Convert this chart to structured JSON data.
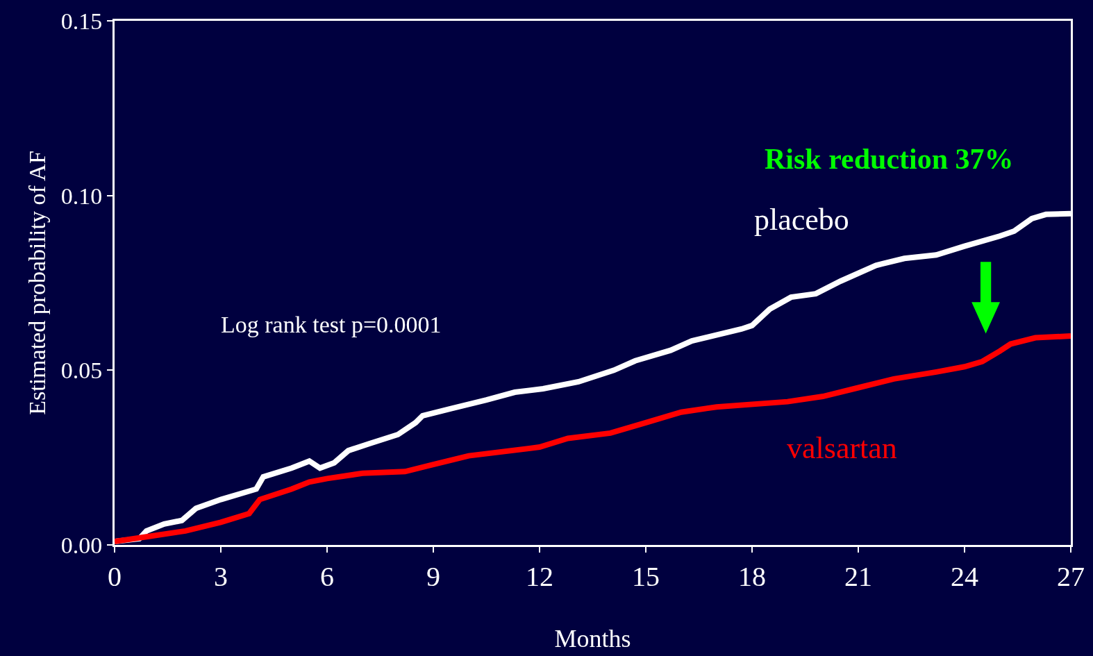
{
  "chart_data": {
    "type": "line",
    "xlabel": "Months",
    "ylabel": "Estimated probability of AF",
    "xlim": [
      0,
      27
    ],
    "xticks": [
      0,
      3,
      6,
      9,
      12,
      15,
      18,
      21,
      24,
      27
    ],
    "ylim": [
      0,
      0.15
    ],
    "yticks": [
      {
        "value": 0,
        "label": "0.00"
      },
      {
        "value": 0.05,
        "label": "0.05"
      },
      {
        "value": 0.1,
        "label": "0.10"
      },
      {
        "value": 0.15,
        "label": "0.15"
      }
    ],
    "legend": false,
    "grid": false,
    "marker": "none",
    "line_style": "solid",
    "annotations": [
      "Log rank test p=0.0001",
      "Risk reduction 37%"
    ],
    "series": [
      {
        "name": "placebo",
        "color": "#ffffff",
        "x": [
          0,
          0.7,
          0.9,
          1.4,
          1.9,
          2.3,
          3,
          4,
          4.2,
          5,
          5.5,
          5.8,
          6.2,
          6.6,
          7.2,
          8,
          8.5,
          8.7,
          9.5,
          10.5,
          11.3,
          12.1,
          13.1,
          14.1,
          14.7,
          15.7,
          16.3,
          17.7,
          18,
          18.5,
          19.1,
          19.8,
          20.5,
          21.5,
          22.3,
          23.2,
          24,
          25,
          25.4,
          25.9,
          26.3,
          27
        ],
        "values": [
          0.001,
          0.0018,
          0.004,
          0.006,
          0.007,
          0.0105,
          0.013,
          0.016,
          0.0195,
          0.022,
          0.024,
          0.022,
          0.0235,
          0.027,
          0.029,
          0.0316,
          0.035,
          0.037,
          0.039,
          0.0415,
          0.0437,
          0.0447,
          0.0467,
          0.05,
          0.0527,
          0.0557,
          0.0584,
          0.0618,
          0.0628,
          0.0675,
          0.0709,
          0.0719,
          0.0755,
          0.08,
          0.082,
          0.083,
          0.0855,
          0.0884,
          0.0898,
          0.0934,
          0.0946,
          0.0948
        ]
      },
      {
        "name": "valsartan",
        "color": "#ff0000",
        "x": [
          0,
          1,
          2,
          3,
          3.8,
          4.1,
          5,
          5.5,
          6,
          7,
          8.2,
          9,
          10,
          12,
          12.8,
          14,
          15,
          16,
          17,
          19,
          20,
          21,
          22,
          23.2,
          24,
          24.5,
          25,
          25.3,
          26,
          27
        ],
        "values": [
          0.001,
          0.0025,
          0.004,
          0.0065,
          0.009,
          0.013,
          0.016,
          0.018,
          0.019,
          0.0205,
          0.021,
          0.023,
          0.0255,
          0.028,
          0.0305,
          0.032,
          0.035,
          0.038,
          0.0395,
          0.041,
          0.0425,
          0.045,
          0.0475,
          0.0495,
          0.051,
          0.0525,
          0.0555,
          0.0575,
          0.0593,
          0.0598
        ]
      }
    ]
  }
}
